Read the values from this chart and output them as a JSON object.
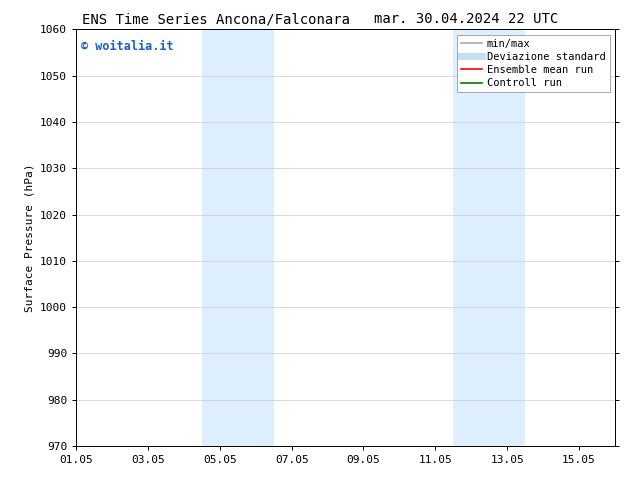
{
  "title_left": "ENS Time Series Ancona/Falconara",
  "title_right": "mar. 30.04.2024 22 UTC",
  "ylabel": "Surface Pressure (hPa)",
  "ylim": [
    970,
    1060
  ],
  "yticks": [
    970,
    980,
    990,
    1000,
    1010,
    1020,
    1030,
    1040,
    1050,
    1060
  ],
  "xtick_labels": [
    "01.05",
    "03.05",
    "05.05",
    "07.05",
    "09.05",
    "11.05",
    "13.05",
    "15.05"
  ],
  "xtick_positions": [
    0,
    2,
    4,
    6,
    8,
    10,
    12,
    14
  ],
  "x_min": 0,
  "x_max": 15,
  "shaded_regions": [
    {
      "start": 3.5,
      "end": 5.5,
      "color": "#ddeeff"
    },
    {
      "start": 10.5,
      "end": 12.5,
      "color": "#ddeeff"
    }
  ],
  "watermark_text": "© woitalia.it",
  "watermark_color": "#1a5fc8",
  "legend_entries": [
    {
      "label": "min/max",
      "color": "#aaaaaa",
      "lw": 1.2
    },
    {
      "label": "Deviazione standard",
      "color": "#c8ddf0",
      "lw": 5
    },
    {
      "label": "Ensemble mean run",
      "color": "red",
      "lw": 1.2
    },
    {
      "label": "Controll run",
      "color": "green",
      "lw": 1.2
    }
  ],
  "bg_color": "#ffffff",
  "grid_color": "#cccccc",
  "title_fontsize": 10,
  "ylabel_fontsize": 8,
  "tick_fontsize": 8,
  "legend_fontsize": 7.5,
  "watermark_fontsize": 8.5
}
